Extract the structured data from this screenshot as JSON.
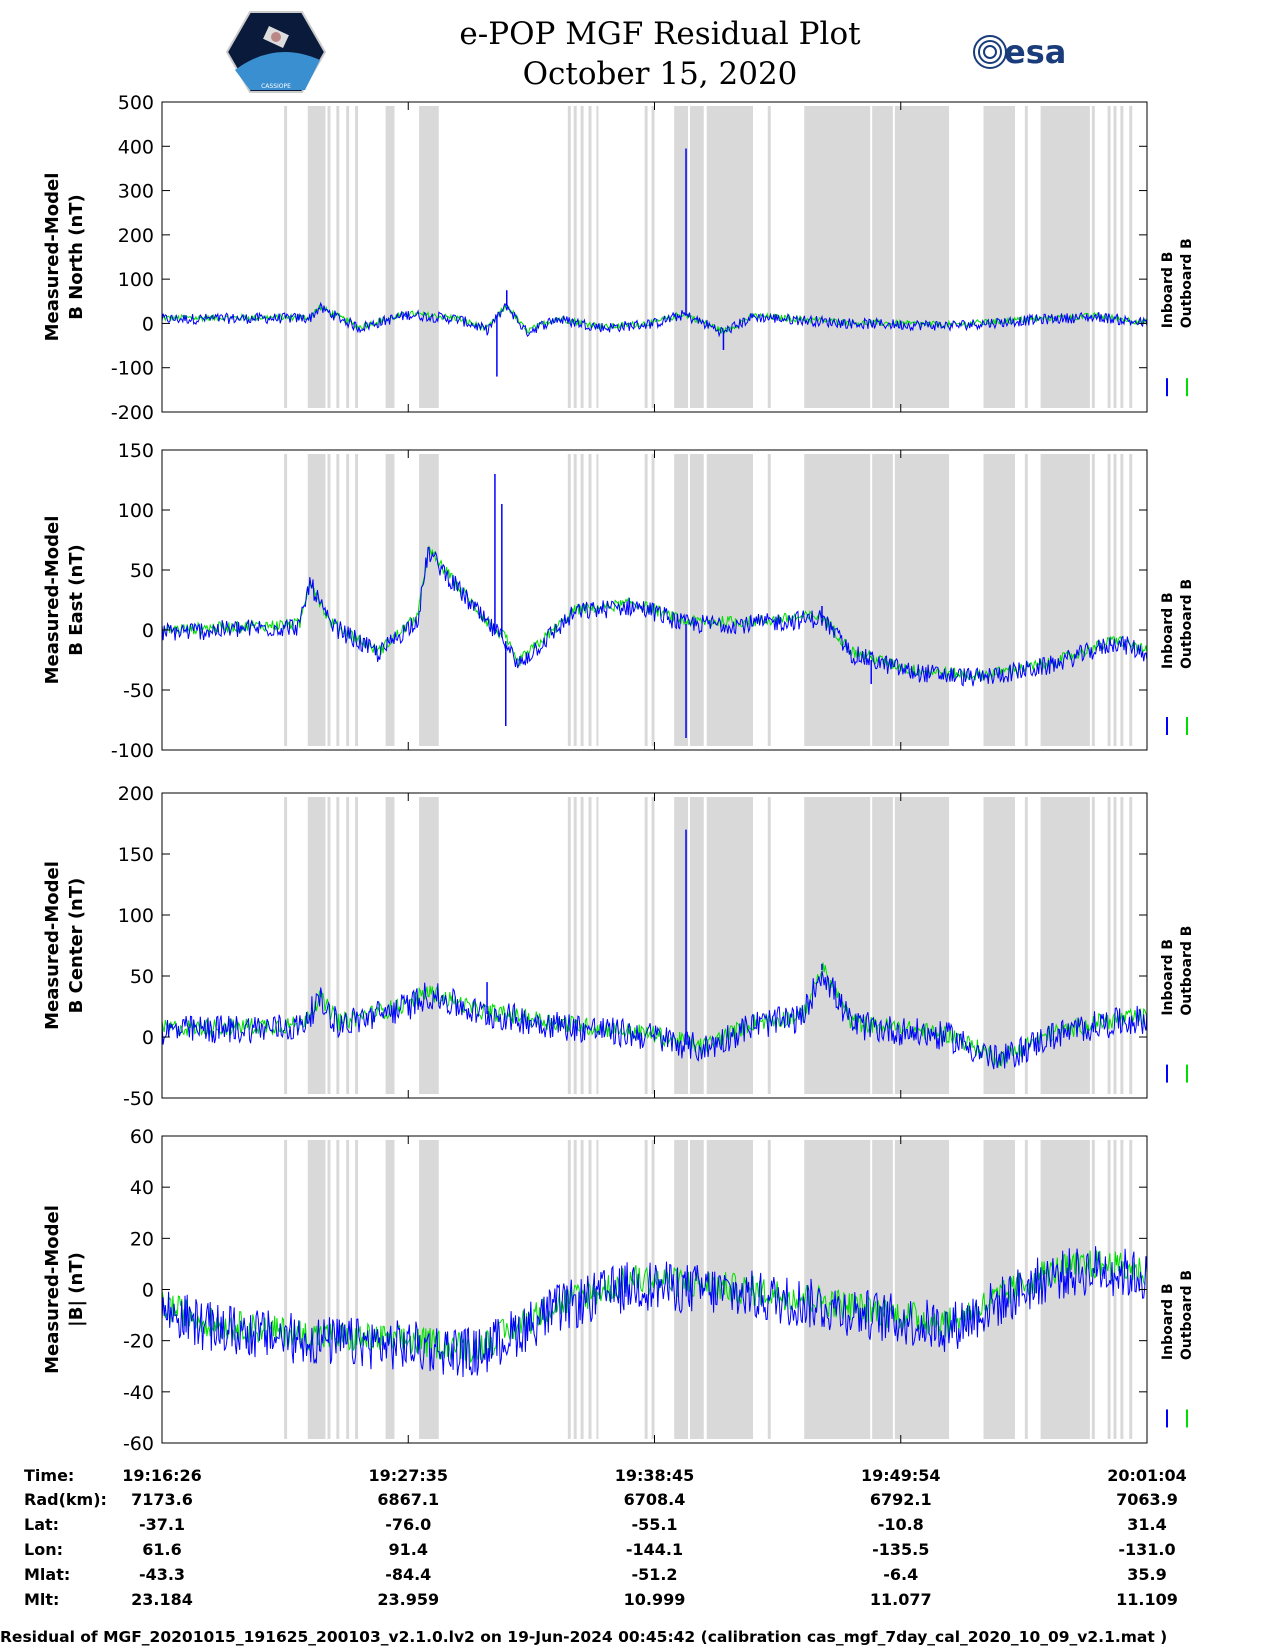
{
  "header": {
    "title": "e-POP MGF Residual Plot",
    "date": "October 15, 2020",
    "left_logo": "cassiope-mission-logo",
    "left_logo_text": "CASSIOPE",
    "right_logo": "esa-logo",
    "right_logo_text": "esa"
  },
  "colors": {
    "inboard": "#0000ff",
    "outboard": "#00dd00",
    "shade": "#d9d9d9"
  },
  "chart_data": [
    {
      "type": "line",
      "ylabel": "Measured-Model",
      "ylabel2": "B North (nT)",
      "ylim": [
        -200,
        500
      ],
      "yticks": [
        -200,
        -100,
        0,
        100,
        200,
        300,
        400,
        500
      ],
      "series": [
        {
          "name": "Inboard B"
        },
        {
          "name": "Outboard B"
        }
      ],
      "baseline": [
        [
          0,
          10
        ],
        [
          0.15,
          12
        ],
        [
          0.16,
          35
        ],
        [
          0.2,
          -10
        ],
        [
          0.25,
          20
        ],
        [
          0.3,
          10
        ],
        [
          0.33,
          -15
        ],
        [
          0.35,
          40
        ],
        [
          0.37,
          -20
        ],
        [
          0.4,
          10
        ],
        [
          0.45,
          -10
        ],
        [
          0.5,
          0
        ],
        [
          0.53,
          20
        ],
        [
          0.57,
          -20
        ],
        [
          0.6,
          15
        ],
        [
          0.7,
          0
        ],
        [
          0.8,
          -5
        ],
        [
          0.9,
          10
        ],
        [
          0.95,
          15
        ],
        [
          1.0,
          0
        ]
      ],
      "noise": 12,
      "spikes": [
        [
          0.35,
          75
        ],
        [
          0.34,
          -120
        ],
        [
          0.532,
          395
        ],
        [
          0.57,
          -60
        ]
      ]
    },
    {
      "type": "line",
      "ylabel": "Measured-Model",
      "ylabel2": "B East (nT)",
      "ylim": [
        -100,
        150
      ],
      "yticks": [
        -100,
        -50,
        0,
        50,
        100,
        150
      ],
      "series": [
        {
          "name": "Inboard B"
        },
        {
          "name": "Outboard B"
        }
      ],
      "baseline": [
        [
          0,
          -2
        ],
        [
          0.14,
          3
        ],
        [
          0.15,
          40
        ],
        [
          0.17,
          5
        ],
        [
          0.22,
          -20
        ],
        [
          0.26,
          10
        ],
        [
          0.27,
          65
        ],
        [
          0.3,
          35
        ],
        [
          0.33,
          5
        ],
        [
          0.35,
          -10
        ],
        [
          0.36,
          -30
        ],
        [
          0.42,
          15
        ],
        [
          0.48,
          20
        ],
        [
          0.5,
          15
        ],
        [
          0.53,
          5
        ],
        [
          0.6,
          5
        ],
        [
          0.67,
          10
        ],
        [
          0.7,
          -20
        ],
        [
          0.76,
          -35
        ],
        [
          0.83,
          -40
        ],
        [
          0.9,
          -30
        ],
        [
          0.97,
          -10
        ],
        [
          1.0,
          -20
        ]
      ],
      "noise": 8,
      "spikes": [
        [
          0.338,
          130
        ],
        [
          0.345,
          105
        ],
        [
          0.349,
          -80
        ],
        [
          0.532,
          -90
        ],
        [
          0.67,
          20
        ],
        [
          0.72,
          -45
        ]
      ]
    },
    {
      "type": "line",
      "ylabel": "Measured-Model",
      "ylabel2": "B Center (nT)",
      "ylim": [
        -50,
        200
      ],
      "yticks": [
        -50,
        0,
        50,
        100,
        150,
        200
      ],
      "series": [
        {
          "name": "Inboard B"
        },
        {
          "name": "Outboard B"
        }
      ],
      "baseline": [
        [
          0,
          5
        ],
        [
          0.14,
          8
        ],
        [
          0.16,
          30
        ],
        [
          0.18,
          10
        ],
        [
          0.25,
          25
        ],
        [
          0.27,
          35
        ],
        [
          0.32,
          20
        ],
        [
          0.4,
          10
        ],
        [
          0.5,
          0
        ],
        [
          0.55,
          -10
        ],
        [
          0.6,
          10
        ],
        [
          0.65,
          15
        ],
        [
          0.67,
          55
        ],
        [
          0.7,
          10
        ],
        [
          0.8,
          0
        ],
        [
          0.85,
          -20
        ],
        [
          0.9,
          0
        ],
        [
          0.95,
          10
        ],
        [
          1.0,
          15
        ]
      ],
      "noise": 12,
      "spikes": [
        [
          0.532,
          170
        ],
        [
          0.67,
          60
        ],
        [
          0.33,
          45
        ]
      ]
    },
    {
      "type": "line",
      "ylabel": "Measured-Model",
      "ylabel2": "|B| (nT)",
      "ylim": [
        -60,
        60
      ],
      "yticks": [
        -60,
        -40,
        -20,
        0,
        20,
        40,
        60
      ],
      "series": [
        {
          "name": "Inboard B"
        },
        {
          "name": "Outboard B"
        }
      ],
      "baseline": [
        [
          0,
          -8
        ],
        [
          0.05,
          -15
        ],
        [
          0.15,
          -20
        ],
        [
          0.25,
          -22
        ],
        [
          0.32,
          -25
        ],
        [
          0.4,
          -8
        ],
        [
          0.48,
          2
        ],
        [
          0.55,
          0
        ],
        [
          0.65,
          -5
        ],
        [
          0.75,
          -12
        ],
        [
          0.8,
          -15
        ],
        [
          0.85,
          -5
        ],
        [
          0.9,
          5
        ],
        [
          0.95,
          8
        ],
        [
          1.0,
          5
        ]
      ],
      "noise": 10,
      "spikes": []
    }
  ],
  "shaded_intervals": [
    [
      0.124,
      0.127
    ],
    [
      0.148,
      0.166
    ],
    [
      0.168,
      0.171
    ],
    [
      0.177,
      0.18
    ],
    [
      0.187,
      0.19
    ],
    [
      0.196,
      0.199
    ],
    [
      0.227,
      0.236
    ],
    [
      0.261,
      0.264
    ],
    [
      0.264,
      0.281
    ],
    [
      0.412,
      0.415
    ],
    [
      0.418,
      0.421
    ],
    [
      0.425,
      0.428
    ],
    [
      0.433,
      0.436
    ],
    [
      0.441,
      0.443
    ],
    [
      0.49,
      0.493
    ],
    [
      0.497,
      0.5
    ],
    [
      0.52,
      0.534
    ],
    [
      0.536,
      0.55
    ],
    [
      0.553,
      0.6
    ],
    [
      0.615,
      0.618
    ],
    [
      0.652,
      0.719
    ],
    [
      0.721,
      0.742
    ],
    [
      0.744,
      0.799
    ],
    [
      0.834,
      0.866
    ],
    [
      0.876,
      0.879
    ],
    [
      0.892,
      0.942
    ],
    [
      0.944,
      0.947
    ],
    [
      0.96,
      0.963
    ],
    [
      0.966,
      0.969
    ],
    [
      0.973,
      0.976
    ],
    [
      0.982,
      0.985
    ]
  ],
  "table": {
    "row_labels": [
      "Time:",
      "Rad(km):",
      "Lat:",
      "Lon:",
      "Mlat:",
      "Mlt:"
    ],
    "columns": [
      [
        "19:16:26",
        "7173.6",
        "-37.1",
        "61.6",
        "-43.3",
        "23.184"
      ],
      [
        "19:27:35",
        "6867.1",
        "-76.0",
        "91.4",
        "-84.4",
        "23.959"
      ],
      [
        "19:38:45",
        "6708.4",
        "-55.1",
        "-144.1",
        "-51.2",
        "10.999"
      ],
      [
        "19:49:54",
        "6792.1",
        "-10.8",
        "-135.5",
        "-6.4",
        "11.077"
      ],
      [
        "20:01:04",
        "7063.9",
        "31.4",
        "-131.0",
        "35.9",
        "11.109"
      ]
    ]
  },
  "footer": "Residual of MGF_20201015_191625_200103_v2.1.0.lv2 on 19-Jun-2024 00:45:42 (calibration cas_mgf_7day_cal_2020_10_09_v2.1.mat )"
}
